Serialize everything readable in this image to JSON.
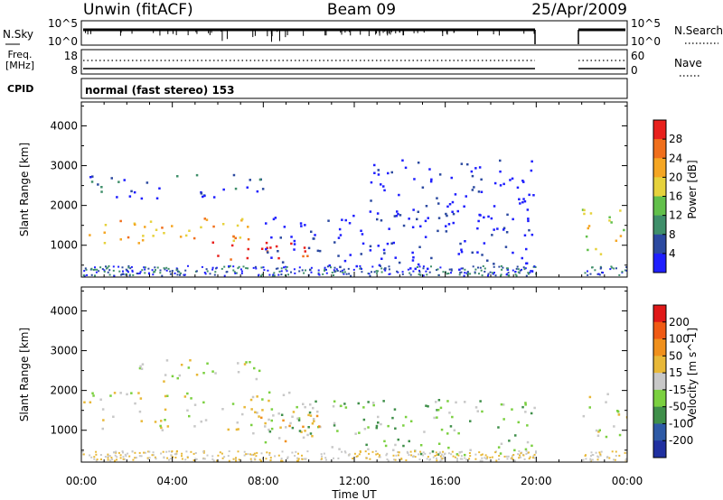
{
  "header": {
    "station": "Unwin (fitACF)",
    "beam": "Beam 09",
    "date": "25/Apr/2009"
  },
  "nsky_panel": {
    "left_label": "N.Sky",
    "right_label": "N.Search",
    "tick_top": "10^5",
    "tick_bottom": "10^0"
  },
  "freq_panel": {
    "left_label_1": "Freq.",
    "left_label_2": "[MHz]",
    "left_ticks": [
      "18",
      "8"
    ],
    "right_label": "Nave",
    "right_ticks": [
      "60",
      "0"
    ]
  },
  "cpid_panel": {
    "label": "CPID",
    "value": "normal (fast stereo) 153"
  },
  "x_axis": {
    "label": "Time UT",
    "ticks": [
      "00:00",
      "04:00",
      "08:00",
      "12:00",
      "16:00",
      "20:00",
      "00:00"
    ]
  },
  "chart_data": [
    {
      "type": "heatmap",
      "name": "power",
      "ylabel": "Slant Range [km]",
      "yticks": [
        "1000",
        "2000",
        "3000",
        "4000"
      ],
      "ylim": [
        200,
        4600
      ],
      "xlim_hours": [
        0,
        24
      ],
      "colorbar": {
        "label": "Power [dB]",
        "ticks": [
          "4",
          "8",
          "12",
          "16",
          "20",
          "24",
          "28"
        ],
        "colors": [
          "#1f1fff",
          "#2c4aa0",
          "#3f8f6a",
          "#62c04b",
          "#e6d23c",
          "#f5a623",
          "#f06f1c",
          "#e8201c"
        ]
      },
      "data_gap_hours": [
        20.0,
        22.0
      ],
      "bands": [
        {
          "t0": 0.0,
          "t1": 7.5,
          "r0": 1000,
          "r1": 1700,
          "level": 5
        },
        {
          "t0": 5.5,
          "t1": 11.0,
          "r0": 650,
          "r1": 1100,
          "level": 7
        },
        {
          "t0": 0.0,
          "t1": 8.0,
          "r0": 2200,
          "r1": 2800,
          "level": 1
        },
        {
          "t0": 8.0,
          "t1": 20.0,
          "r0": 400,
          "r1": 1800,
          "level": 0
        },
        {
          "t0": 12.5,
          "t1": 20.0,
          "r0": 1700,
          "r1": 3200,
          "level": 0
        },
        {
          "t0": 22.0,
          "t1": 24.0,
          "r0": 800,
          "r1": 2000,
          "level": 4
        }
      ]
    },
    {
      "type": "heatmap",
      "name": "velocity",
      "ylabel": "Slant Range [km]",
      "yticks": [
        "1000",
        "2000",
        "3000",
        "4000"
      ],
      "ylim": [
        200,
        4600
      ],
      "xlim_hours": [
        0,
        24
      ],
      "colorbar": {
        "label": "Velocity [m s^-1]",
        "ticks": [
          "200",
          "100",
          "50",
          "15",
          "-15",
          "-50",
          "-100",
          "-200"
        ],
        "colors": [
          "#2030a0",
          "#2e5aa6",
          "#3f8f4a",
          "#7bd040",
          "#c8c8c8",
          "#e8b838",
          "#f0901c",
          "#f05a14",
          "#e01818"
        ]
      },
      "data_gap_hours": [
        20.0,
        22.0
      ],
      "bands": [
        {
          "t0": 0.0,
          "t1": 10.5,
          "r0": 1000,
          "r1": 2000,
          "level": 4
        },
        {
          "t0": 6.5,
          "t1": 10.5,
          "r0": 750,
          "r1": 1500,
          "level": 5
        },
        {
          "t0": 2.0,
          "t1": 8.0,
          "r0": 2200,
          "r1": 2800,
          "level": 4
        },
        {
          "t0": 8.0,
          "t1": 20.0,
          "r0": 400,
          "r1": 1800,
          "level": 3
        },
        {
          "t0": 22.0,
          "t1": 24.0,
          "r0": 800,
          "r1": 2000,
          "level": 4
        }
      ]
    }
  ]
}
